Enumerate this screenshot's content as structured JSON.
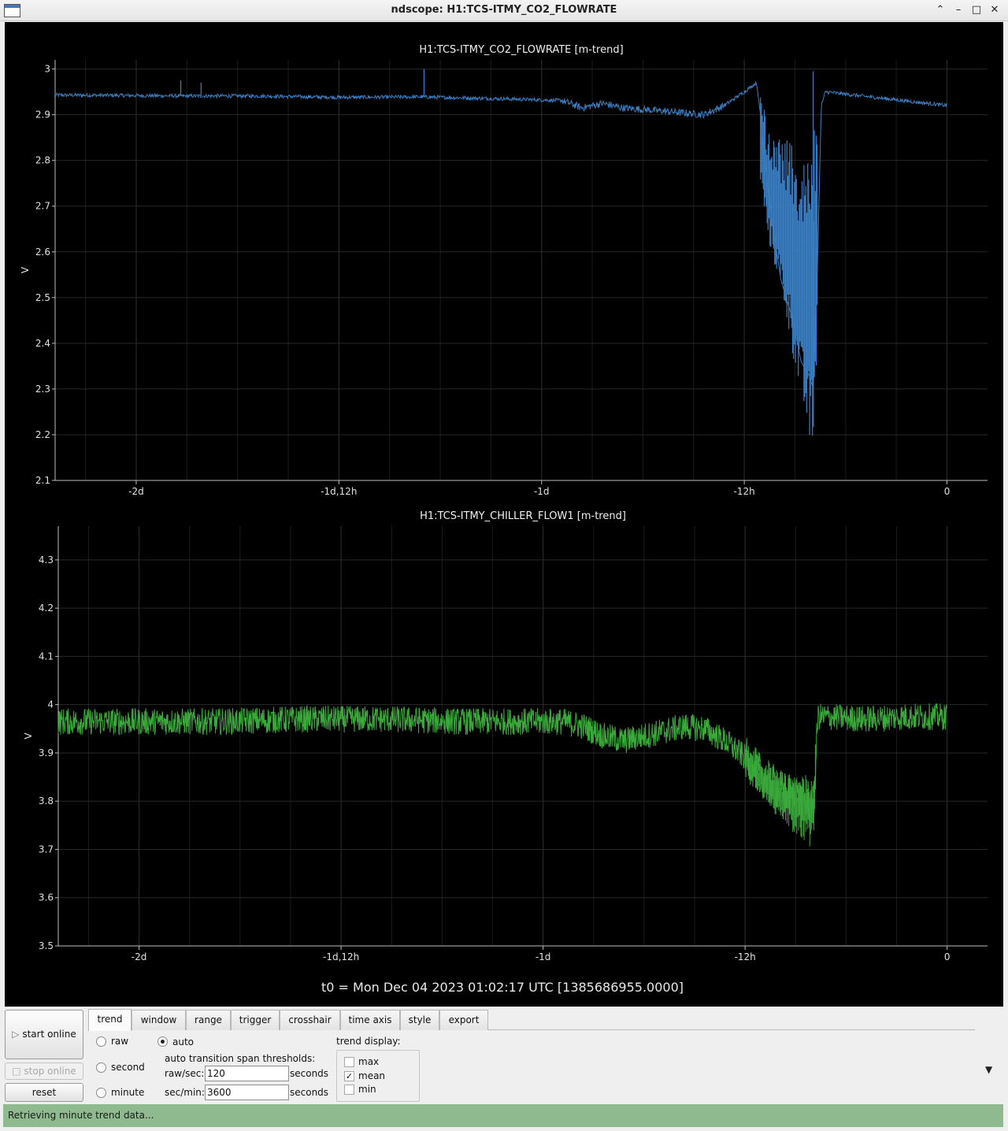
{
  "window": {
    "title": "ndscope: H1:TCS-ITMY_CO2_FLOWRATE"
  },
  "titlebar_icons": [
    "app-window-icon",
    "chevron-up-icon",
    "minimize-icon",
    "maximize-icon",
    "close-icon"
  ],
  "t0_label": "t0 = Mon Dec 04 2023 01:02:17 UTC [1385686955.0000]",
  "chart_data": [
    {
      "type": "line",
      "title": "H1:TCS-ITMY_CO2_FLOWRATE [m-trend]",
      "ylabel": "V",
      "xlabel": "",
      "xlim": [
        -2.2,
        0.1
      ],
      "ylim": [
        2.1,
        3.02
      ],
      "x_ticks": [
        {
          "v": -2,
          "label": "-2d"
        },
        {
          "v": -1.5,
          "label": "-1d,12h"
        },
        {
          "v": -1,
          "label": "-1d"
        },
        {
          "v": -0.5,
          "label": "-12h"
        },
        {
          "v": 0,
          "label": "0"
        }
      ],
      "y_ticks": [
        "2.1",
        "2.2",
        "2.3",
        "2.4",
        "2.5",
        "2.6",
        "2.7",
        "2.8",
        "2.9",
        "3"
      ],
      "grid": true,
      "color": "#3a7fc4",
      "series": [
        {
          "x": [
            -2.2,
            -2.0,
            -1.9,
            -1.7,
            -1.5,
            -1.3,
            -1.1,
            -0.95,
            -0.9,
            -0.85,
            -0.8,
            -0.7,
            -0.6,
            -0.55,
            -0.5,
            -0.47,
            -0.46,
            -0.45,
            -0.43,
            -0.41,
            -0.38,
            -0.36,
            -0.34,
            -0.33,
            -0.32,
            -0.31,
            -0.3,
            -0.2,
            -0.1,
            0.0
          ],
          "y": [
            2.943,
            2.942,
            2.941,
            2.941,
            2.938,
            2.939,
            2.935,
            2.931,
            2.915,
            2.925,
            2.915,
            2.908,
            2.9,
            2.92,
            2.95,
            2.97,
            2.9,
            2.8,
            2.66,
            2.54,
            2.45,
            2.36,
            2.33,
            2.3,
            2.55,
            2.92,
            2.95,
            2.94,
            2.93,
            2.92
          ]
        }
      ],
      "envelope": [
        {
          "x": -0.46,
          "lo": 2.74,
          "hi": 2.97
        },
        {
          "x": -0.44,
          "lo": 2.62,
          "hi": 2.86
        },
        {
          "x": -0.42,
          "lo": 2.55,
          "hi": 2.85
        },
        {
          "x": -0.4,
          "lo": 2.47,
          "hi": 2.85
        },
        {
          "x": -0.38,
          "lo": 2.37,
          "hi": 2.83
        },
        {
          "x": -0.36,
          "lo": 2.27,
          "hi": 2.8
        },
        {
          "x": -0.34,
          "lo": 2.18,
          "hi": 2.82
        },
        {
          "x": -0.33,
          "lo": 2.14,
          "hi": 2.87
        },
        {
          "x": -0.32,
          "lo": 2.4,
          "hi": 2.88
        }
      ],
      "spikes": [
        {
          "x": -1.89,
          "y": 2.975
        },
        {
          "x": -1.84,
          "y": 2.97
        },
        {
          "x": -1.29,
          "y": 3.0
        },
        {
          "x": -0.33,
          "y": 2.995
        }
      ]
    },
    {
      "type": "line",
      "title": "H1:TCS-ITMY_CHILLER_FLOW1 [m-trend]",
      "ylabel": "V",
      "xlabel": "",
      "xlim": [
        -2.2,
        0.1
      ],
      "ylim": [
        3.5,
        4.37
      ],
      "x_ticks": [
        {
          "v": -2,
          "label": "-2d"
        },
        {
          "v": -1.5,
          "label": "-1d,12h"
        },
        {
          "v": -1,
          "label": "-1d"
        },
        {
          "v": -0.5,
          "label": "-12h"
        },
        {
          "v": 0,
          "label": "0"
        }
      ],
      "y_ticks": [
        "3.5",
        "3.6",
        "3.7",
        "3.8",
        "3.9",
        "4",
        "4.1",
        "4.2",
        "4.3"
      ],
      "grid": true,
      "color": "#3aa83a",
      "series": [
        {
          "x": [
            -2.2,
            -2.0,
            -1.8,
            -1.6,
            -1.4,
            -1.2,
            -1.0,
            -0.95,
            -0.9,
            -0.85,
            -0.8,
            -0.75,
            -0.7,
            -0.65,
            -0.6,
            -0.55,
            -0.5,
            -0.45,
            -0.4,
            -0.35,
            -0.33,
            -0.32,
            -0.3,
            -0.2,
            -0.1,
            0.0
          ],
          "y": [
            3.965,
            3.965,
            3.965,
            3.97,
            3.97,
            3.965,
            3.965,
            3.965,
            3.955,
            3.935,
            3.925,
            3.935,
            3.945,
            3.955,
            3.95,
            3.925,
            3.89,
            3.845,
            3.815,
            3.8,
            3.79,
            3.975,
            3.975,
            3.97,
            3.975,
            3.975
          ]
        }
      ],
      "noise_amplitude": 0.028
    }
  ],
  "controls": {
    "start_online": "start online",
    "stop_online": "stop online",
    "reset": "reset",
    "tabs": [
      "trend",
      "window",
      "range",
      "trigger",
      "crosshair",
      "time axis",
      "style",
      "export"
    ],
    "active_tab": "trend",
    "radio_raw": "raw",
    "radio_second": "second",
    "radio_minute": "minute",
    "radio_auto": "auto",
    "selected_mode": "auto",
    "thresholds_label": "auto transition span thresholds:",
    "raw_sec_label": "raw/sec:",
    "raw_sec_value": "120",
    "sec_min_label": "sec/min:",
    "sec_min_value": "3600",
    "seconds_unit_1": "seconds",
    "seconds_unit_2": "seconds",
    "trend_display_label": "trend display:",
    "trend_max": "max",
    "trend_mean": "mean",
    "trend_min": "min",
    "trend_checked": [
      "mean"
    ]
  },
  "status": {
    "message": "Retrieving minute trend data..."
  }
}
